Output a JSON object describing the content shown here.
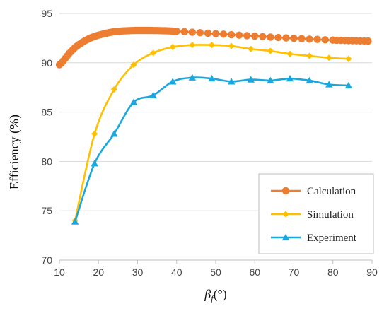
{
  "chart_data": {
    "type": "line",
    "xlabel_main": "β",
    "xlabel_sub": "f",
    "xlabel_unit": "(°)",
    "ylabel": "Efficiency (%)",
    "xlim": [
      10,
      90
    ],
    "ylim": [
      70,
      95
    ],
    "xticks": [
      "10",
      "20",
      "30",
      "40",
      "50",
      "60",
      "70",
      "80",
      "90"
    ],
    "yticks": [
      "70",
      "75",
      "80",
      "85",
      "90",
      "95"
    ],
    "grid": "horizontal",
    "legend_position": "bottom-right",
    "series": [
      {
        "name": "Calculation",
        "color": "#ED7D31",
        "marker": "circle",
        "x": [
          10,
          10.5,
          11,
          11.5,
          12,
          12.5,
          13,
          13.5,
          14,
          14.5,
          15,
          15.5,
          16,
          16.5,
          17,
          17.5,
          18,
          18.5,
          19,
          19.5,
          20,
          20.5,
          21,
          21.5,
          22,
          22.5,
          23,
          23.5,
          24,
          24.5,
          25,
          25.5,
          26,
          26.5,
          27,
          27.5,
          28,
          28.5,
          29,
          29.5,
          30,
          30.5,
          31,
          31.5,
          32,
          32.5,
          33,
          33.5,
          34,
          34.5,
          35,
          35.5,
          36,
          36.5,
          37,
          37.5,
          38,
          38.5,
          39,
          39.5,
          40,
          42,
          44,
          46,
          48,
          50,
          52,
          54,
          56,
          58,
          60,
          62,
          64,
          66,
          68,
          70,
          72,
          74,
          76,
          78,
          80,
          81,
          82,
          83,
          84,
          85,
          86,
          87,
          88,
          89
        ],
        "values": [
          89.8,
          89.95,
          90.2,
          90.45,
          90.7,
          90.95,
          91.15,
          91.35,
          91.55,
          91.7,
          91.85,
          91.97,
          92.1,
          92.22,
          92.33,
          92.43,
          92.52,
          92.6,
          92.67,
          92.74,
          92.8,
          92.85,
          92.9,
          92.95,
          93.0,
          93.04,
          93.08,
          93.11,
          93.14,
          93.16,
          93.18,
          93.2,
          93.22,
          93.23,
          93.24,
          93.25,
          93.26,
          93.27,
          93.27,
          93.28,
          93.28,
          93.28,
          93.28,
          93.28,
          93.28,
          93.28,
          93.28,
          93.28,
          93.27,
          93.27,
          93.27,
          93.26,
          93.26,
          93.25,
          93.25,
          93.24,
          93.23,
          93.22,
          93.21,
          93.2,
          93.2,
          93.15,
          93.1,
          93.05,
          93.0,
          92.95,
          92.9,
          92.85,
          92.8,
          92.75,
          92.7,
          92.65,
          92.6,
          92.56,
          92.52,
          92.48,
          92.44,
          92.4,
          92.37,
          92.33,
          92.3,
          92.28,
          92.27,
          92.26,
          92.25,
          92.24,
          92.23,
          92.22,
          92.21,
          92.2
        ]
      },
      {
        "name": "Simulation",
        "color": "#FFC000",
        "marker": "diamond",
        "x": [
          14,
          19,
          24,
          29,
          34,
          39,
          44,
          49,
          54,
          59,
          64,
          69,
          74,
          79,
          84
        ],
        "values": [
          74.0,
          82.8,
          87.3,
          89.8,
          91.0,
          91.6,
          91.8,
          91.8,
          91.7,
          91.4,
          91.2,
          90.9,
          90.7,
          90.5,
          90.4
        ]
      },
      {
        "name": "Experiment",
        "color": "#1AA7E0",
        "marker": "triangle",
        "x": [
          14,
          19,
          24,
          29,
          34,
          39,
          44,
          49,
          54,
          59,
          64,
          69,
          74,
          79,
          84
        ],
        "values": [
          73.9,
          79.8,
          82.8,
          86.0,
          86.7,
          88.1,
          88.5,
          88.4,
          88.1,
          88.3,
          88.2,
          88.4,
          88.2,
          87.8,
          87.7
        ]
      }
    ]
  }
}
